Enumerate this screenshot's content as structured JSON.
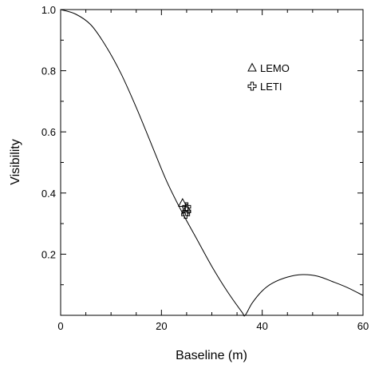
{
  "chart_data": {
    "type": "line",
    "title": "",
    "xlabel": "Baseline (m)",
    "ylabel": "Visibility",
    "xlim": [
      0,
      60
    ],
    "ylim": [
      0,
      1.0
    ],
    "x_ticks": [
      0,
      20,
      40,
      60
    ],
    "x_tick_labels": [
      "0",
      "20",
      "40",
      "60"
    ],
    "y_ticks": [
      0.2,
      0.4,
      0.6,
      0.8,
      1.0
    ],
    "y_tick_labels": [
      "0.2",
      "0.4",
      "0.6",
      "0.8",
      "1.0"
    ],
    "grid": false,
    "legend_position": "top-right",
    "curve": {
      "x": [
        0,
        3,
        6,
        9,
        12,
        15,
        18,
        21,
        24,
        27,
        30,
        33,
        36,
        36.6,
        38,
        40,
        42,
        45,
        48,
        51,
        54,
        57,
        60
      ],
      "y": [
        1.0,
        0.985,
        0.95,
        0.88,
        0.79,
        0.68,
        0.56,
        0.44,
        0.34,
        0.25,
        0.16,
        0.08,
        0.01,
        0.0,
        0.04,
        0.08,
        0.105,
        0.125,
        0.133,
        0.128,
        0.11,
        0.09,
        0.065
      ],
      "color": "#000000"
    },
    "series": [
      {
        "name": "LEMO",
        "marker": "triangle",
        "color": "#000000",
        "points": [
          {
            "x": 24.2,
            "y": 0.367
          },
          {
            "x": 25.0,
            "y": 0.35
          }
        ]
      },
      {
        "name": "LETI",
        "marker": "plus",
        "color": "#000000",
        "points": [
          {
            "x": 25.0,
            "y": 0.355
          },
          {
            "x": 25.0,
            "y": 0.34
          },
          {
            "x": 24.8,
            "y": 0.33
          }
        ]
      }
    ]
  }
}
